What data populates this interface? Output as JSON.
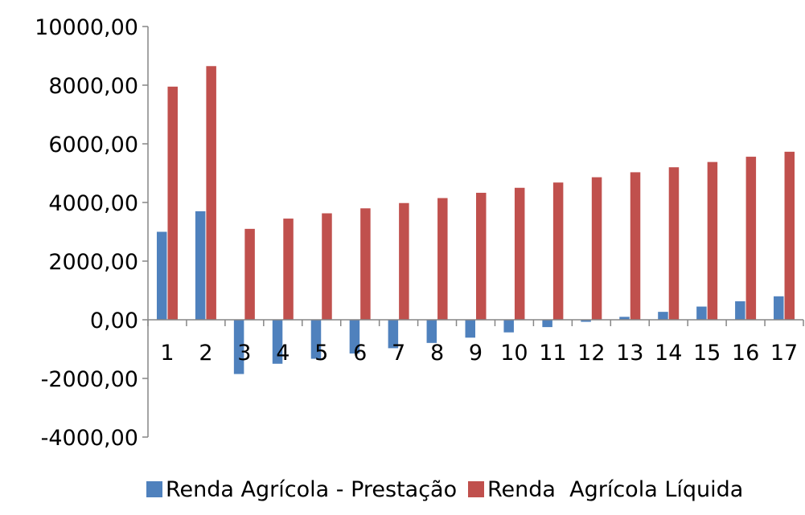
{
  "chart_data": {
    "type": "bar",
    "title": "",
    "xlabel": "",
    "ylabel": "",
    "ylim": [
      -4000,
      10000
    ],
    "y_ticks": [
      -4000,
      -2000,
      0,
      2000,
      4000,
      6000,
      8000,
      10000
    ],
    "y_tick_labels": [
      "-4000,00",
      "-2000,00",
      "0,00",
      "2000,00",
      "4000,00",
      "6000,00",
      "8000,00",
      "10000,00"
    ],
    "categories": [
      "1",
      "2",
      "3",
      "4",
      "5",
      "6",
      "7",
      "8",
      "9",
      "10",
      "11",
      "12",
      "13",
      "14",
      "15",
      "16",
      "17"
    ],
    "grid": false,
    "legend_position": "bottom",
    "series": [
      {
        "name": "Renda Agrícola - Prestação",
        "color": "#4F81BD",
        "values": [
          3000,
          3700,
          -1850,
          -1500,
          -1330,
          -1150,
          -970,
          -790,
          -610,
          -430,
          -250,
          -70,
          100,
          270,
          450,
          630,
          800
        ]
      },
      {
        "name": "Renda  Agrícola Líquida",
        "color": "#C0504D",
        "values": [
          7950,
          8650,
          3100,
          3450,
          3630,
          3800,
          3980,
          4150,
          4330,
          4500,
          4680,
          4860,
          5030,
          5200,
          5380,
          5560,
          5730
        ]
      }
    ]
  }
}
